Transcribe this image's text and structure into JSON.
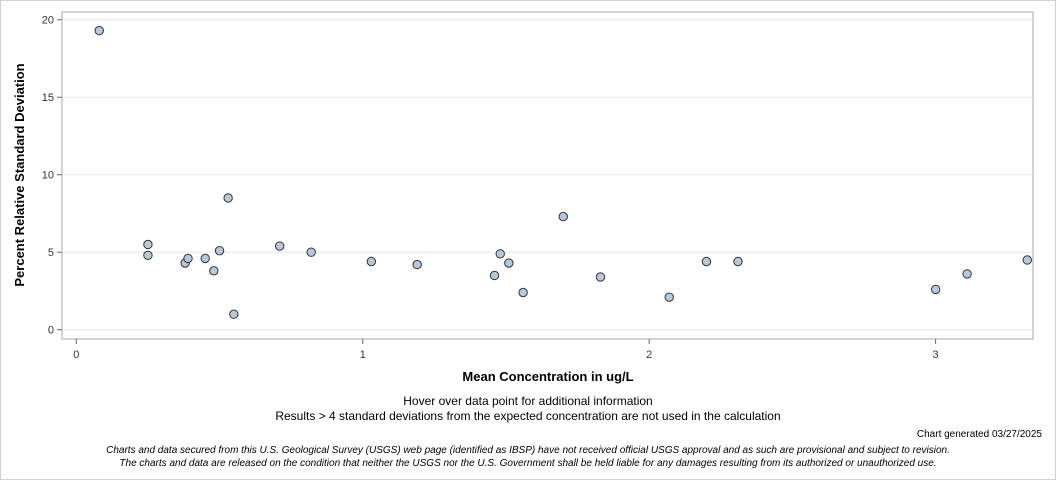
{
  "chart_data": {
    "type": "scatter",
    "xlabel": "Mean Concentration in ug/L",
    "ylabel": "Percent Relative Standard Deviation",
    "xlim": [
      -0.05,
      3.34
    ],
    "ylim": [
      -0.6,
      20.5
    ],
    "xticks": [
      0,
      1,
      2,
      3
    ],
    "yticks": [
      0,
      5,
      10,
      15,
      20
    ],
    "grid": "horizontal",
    "marker_fill": "#b9c7da",
    "marker_stroke": "#333333",
    "points": [
      {
        "x": 0.08,
        "y": 19.3
      },
      {
        "x": 0.25,
        "y": 5.5
      },
      {
        "x": 0.25,
        "y": 4.8
      },
      {
        "x": 0.38,
        "y": 4.3
      },
      {
        "x": 0.39,
        "y": 4.6
      },
      {
        "x": 0.45,
        "y": 4.6
      },
      {
        "x": 0.48,
        "y": 3.8
      },
      {
        "x": 0.5,
        "y": 5.1
      },
      {
        "x": 0.53,
        "y": 8.5
      },
      {
        "x": 0.55,
        "y": 1.0
      },
      {
        "x": 0.71,
        "y": 5.4
      },
      {
        "x": 0.82,
        "y": 5.0
      },
      {
        "x": 1.03,
        "y": 4.4
      },
      {
        "x": 1.19,
        "y": 4.2
      },
      {
        "x": 1.46,
        "y": 3.5
      },
      {
        "x": 1.48,
        "y": 4.9
      },
      {
        "x": 1.51,
        "y": 4.3
      },
      {
        "x": 1.56,
        "y": 2.4
      },
      {
        "x": 1.7,
        "y": 7.3
      },
      {
        "x": 1.83,
        "y": 3.4
      },
      {
        "x": 2.07,
        "y": 2.1
      },
      {
        "x": 2.2,
        "y": 4.4
      },
      {
        "x": 2.31,
        "y": 4.4
      },
      {
        "x": 3.0,
        "y": 2.6
      },
      {
        "x": 3.11,
        "y": 3.6
      },
      {
        "x": 3.32,
        "y": 4.5
      }
    ]
  },
  "notes": {
    "hover": "Hover over data point for additional information",
    "exclusion": "Results > 4 standard deviations from the expected concentration are not used in the calculation",
    "generated": "Chart generated 03/27/2025",
    "disclaimer_line1": "Charts and data secured from this U.S. Geological Survey (USGS) web page (identified as IBSP) have not received official USGS approval and as such are provisional and subject to revision.",
    "disclaimer_line2": "The charts and data are released on the condition that neither the USGS nor the U.S. Government shall be held liable for any damages resulting from its authorized or unauthorized use."
  }
}
